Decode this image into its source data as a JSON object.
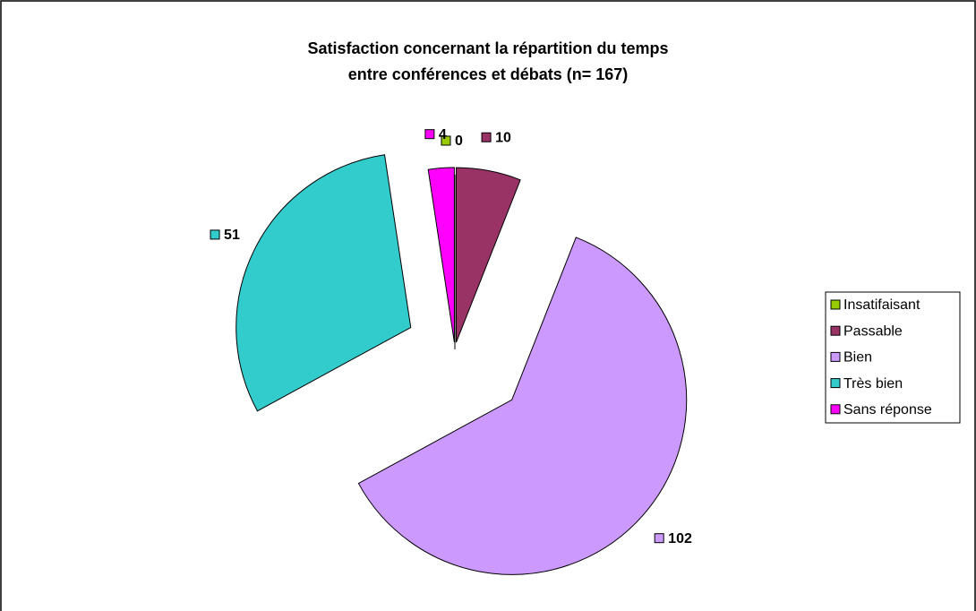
{
  "chart_data": {
    "type": "pie",
    "title": [
      "Satisfaction concernant la répartition du temps",
      "entre conférences et débats (n= 167)"
    ],
    "categories": [
      "Insatifaisant",
      "Passable",
      "Bien",
      "Très bien",
      "Sans réponse"
    ],
    "values": [
      0,
      10,
      102,
      51,
      4
    ],
    "colors": [
      "#99cc00",
      "#993366",
      "#cc99ff",
      "#33cccc",
      "#ff00ff"
    ],
    "legend": "right"
  }
}
